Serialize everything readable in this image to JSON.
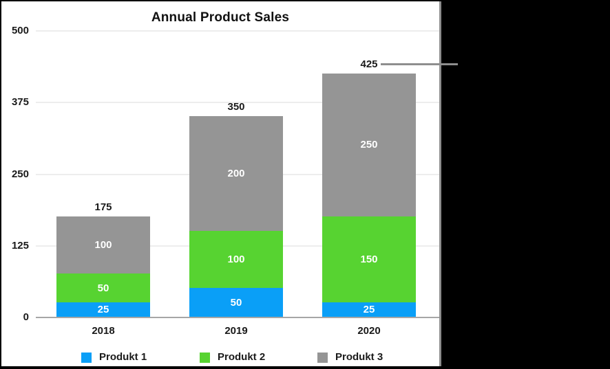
{
  "window": {
    "backdrop_color": "#000000",
    "panel_color": "#ffffff",
    "panel_edge_color": "#8e8e8e"
  },
  "chart_data": {
    "type": "bar",
    "stacked": true,
    "title": "Annual Product Sales",
    "categories": [
      "2018",
      "2019",
      "2020"
    ],
    "series": [
      {
        "name": "Produkt 1",
        "color": "#0a9ff7",
        "values": [
          25,
          50,
          25
        ]
      },
      {
        "name": "Produkt 2",
        "color": "#57d331",
        "values": [
          50,
          100,
          150
        ]
      },
      {
        "name": "Produkt 3",
        "color": "#959595",
        "values": [
          100,
          200,
          250
        ]
      }
    ],
    "totals": [
      175,
      350,
      425
    ],
    "y_ticks": [
      0,
      125,
      250,
      375,
      500
    ],
    "ylim": [
      0,
      500
    ],
    "grid": true,
    "grid_color": "#ededed",
    "axis_color": "#a6a6a6",
    "legend_position": "bottom",
    "value_labels": "inside-white",
    "annotation": {
      "text": "425",
      "category": "2020",
      "callout_line": true,
      "callout_color": "#8e8e8e"
    }
  }
}
